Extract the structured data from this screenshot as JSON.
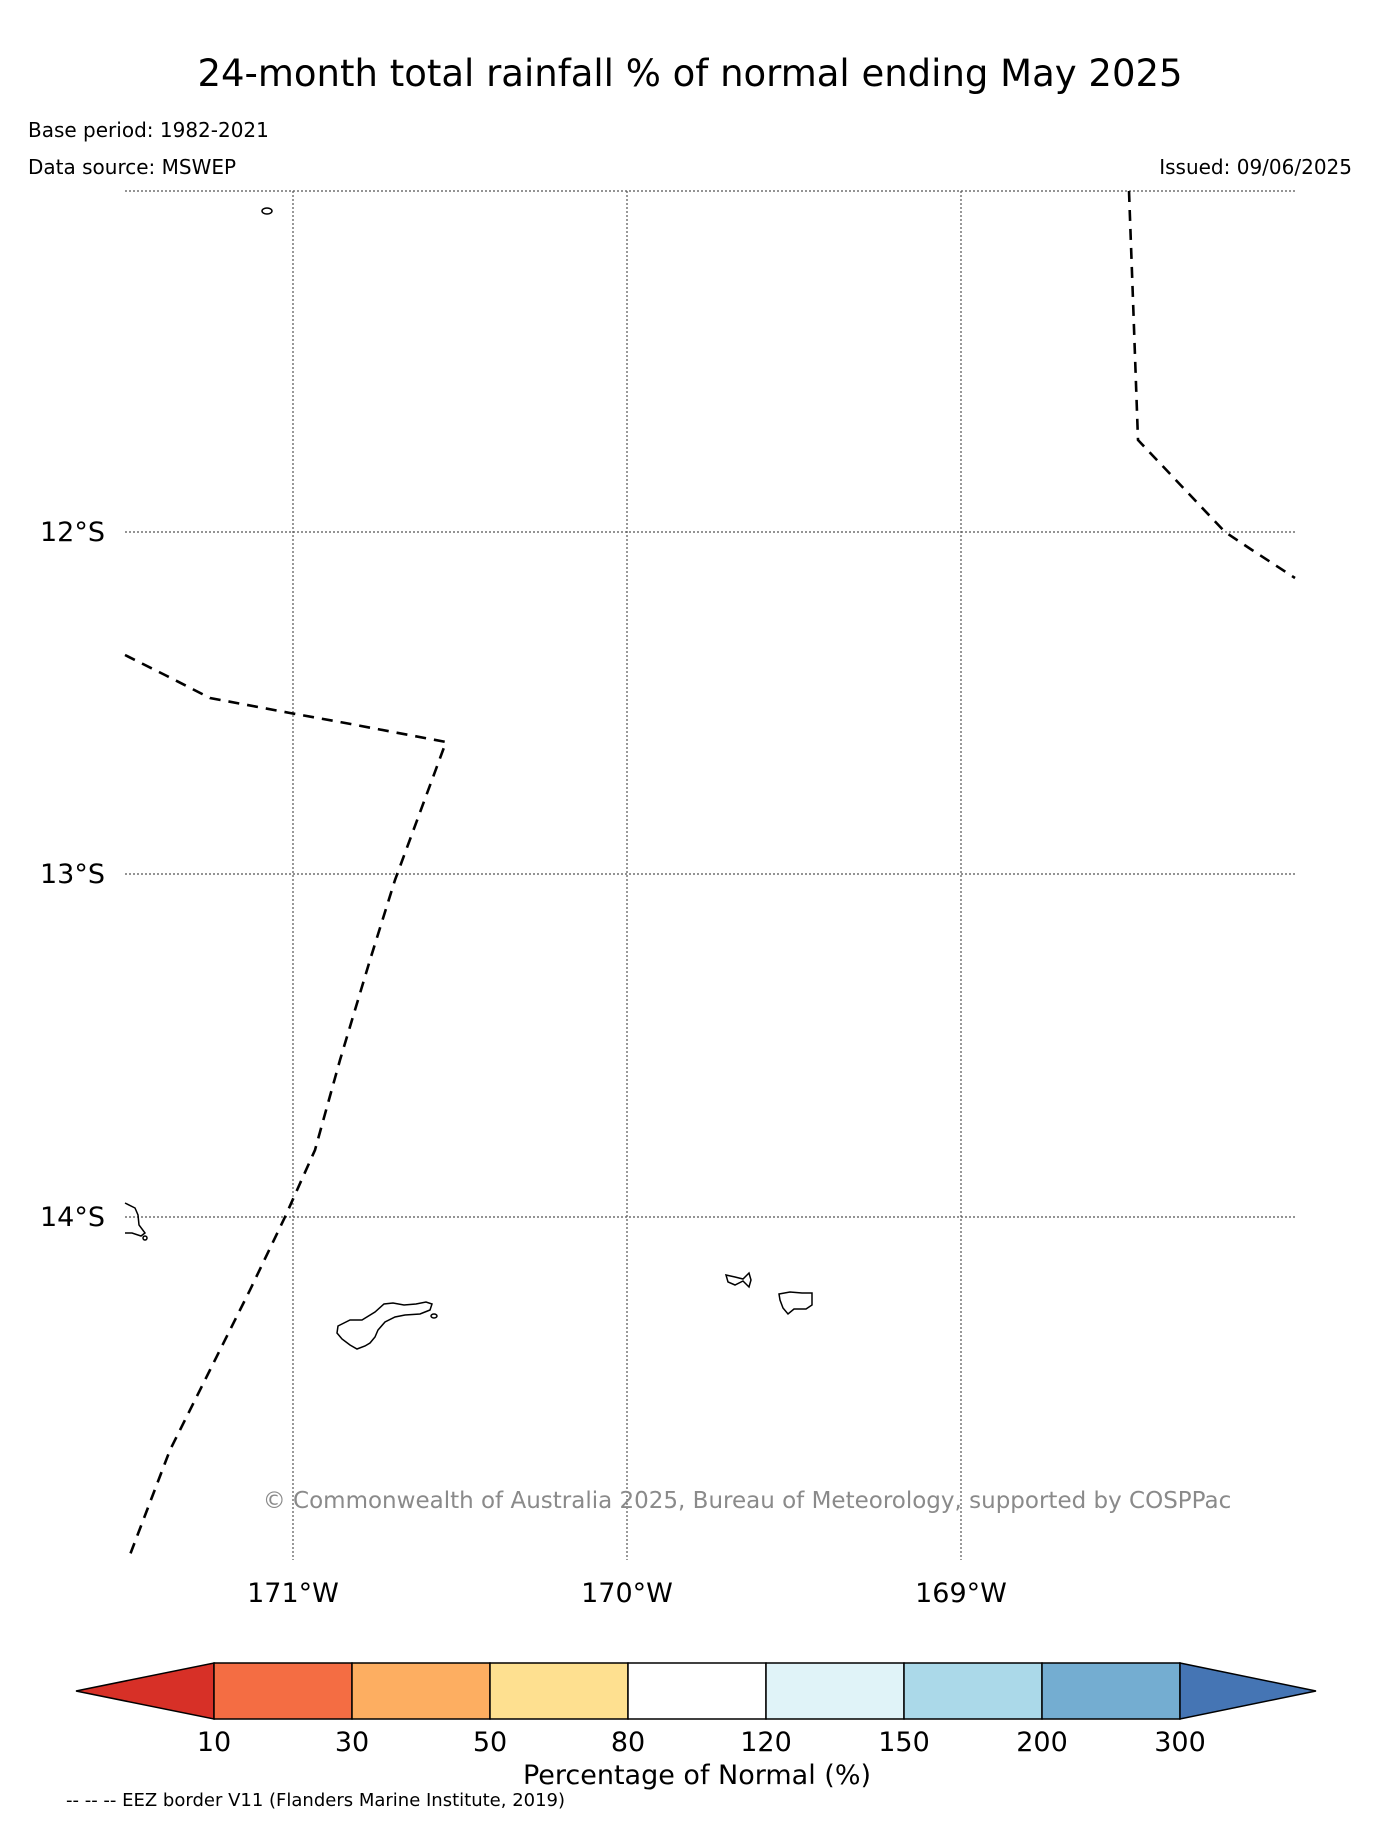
{
  "title": "24-month total rainfall % of normal ending May 2025",
  "base_period": "Base period: 1982-2021",
  "data_source": "Data source: MSWEP",
  "issued": "Issued: 09/06/2025",
  "map": {
    "lat_labels": [
      "12°S",
      "13°S",
      "14°S"
    ],
    "lon_labels": [
      "171°W",
      "170°W",
      "169°W"
    ],
    "copyright": "© Commonwealth of Australia 2025, Bureau of Meteorology, supported by COSPPac",
    "features": [
      "EEZ border (dashed)",
      "Swains Island",
      "Tutuila",
      "Ofu-Olosega",
      "Ta'u",
      "Samoa coastline"
    ]
  },
  "colorbar": {
    "title": "Percentage of Normal (%)",
    "ticks": [
      "10",
      "30",
      "50",
      "80",
      "120",
      "150",
      "200",
      "300"
    ],
    "colors": [
      "#d73027",
      "#f46d43",
      "#fdae61",
      "#fee090",
      "#ffffff",
      "#e0f3f8",
      "#abd9e9",
      "#74add1",
      "#4575b4"
    ]
  },
  "footnote": "-- -- -- EEZ border V11 (Flanders Marine Institute, 2019)"
}
